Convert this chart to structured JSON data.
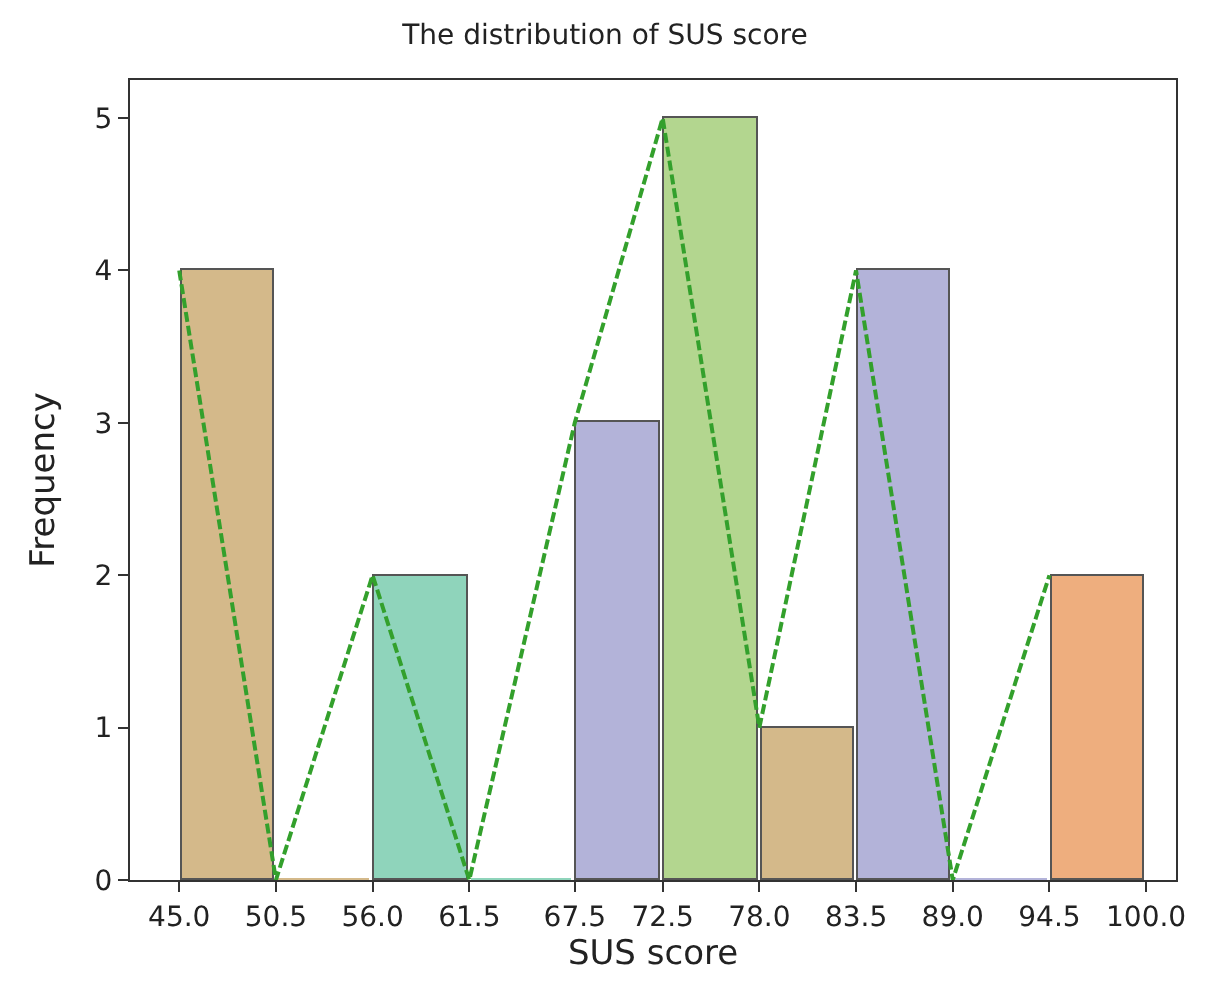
{
  "chart_data": {
    "type": "histogram",
    "title": "The distribution of SUS score",
    "xlabel": "SUS score",
    "ylabel": "Frequency",
    "bins": [
      45.0,
      50.5,
      56.0,
      61.5,
      67.5,
      72.5,
      78.0,
      83.5,
      89.0,
      94.5,
      100.0
    ],
    "values": [
      4,
      0,
      2,
      0,
      3,
      5,
      1,
      4,
      0,
      2
    ],
    "colors": [
      "#d4b98a",
      "#d4b98a",
      "#8fd4bb",
      "#8fd4bb",
      "#b3b3d9",
      "#b3d68f",
      "#d4b98a",
      "#b3b3d9",
      "#b3b3d9",
      "#eeae7e"
    ],
    "series": [
      {
        "type": "line",
        "color": "#33a02c",
        "line_style": "dashed",
        "x": [
          45.0,
          50.5,
          56.0,
          61.5,
          67.5,
          72.5,
          78.0,
          83.5,
          89.0,
          94.5
        ],
        "values": [
          4,
          0,
          2,
          0,
          3,
          5,
          1,
          4,
          0,
          2
        ]
      }
    ],
    "xlim": [
      42.2,
      101.7
    ],
    "xticks": [
      {
        "value": 45.0,
        "label": "45.0"
      },
      50.5,
      {
        "value": 56.0,
        "label": "56.0"
      },
      61.5,
      67.5,
      72.5,
      {
        "value": 78.0,
        "label": "78.0"
      },
      83.5,
      {
        "value": 89.0,
        "label": "89.0"
      },
      94.5,
      {
        "value": 100.0,
        "label": "100.0"
      }
    ],
    "ylim": [
      0,
      5.25
    ],
    "yticks": [
      0,
      1,
      2,
      3,
      4,
      5
    ]
  }
}
